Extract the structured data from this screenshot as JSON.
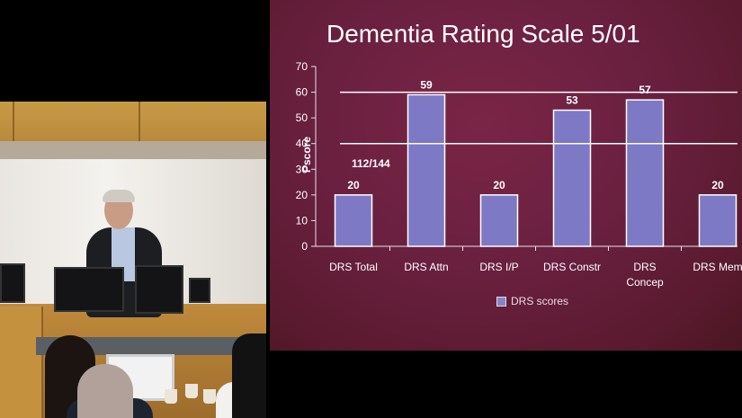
{
  "slide": {
    "title": "Dementia Rating Scale 5/01"
  },
  "chart_data": {
    "type": "bar",
    "title": "Dementia Rating Scale 5/01",
    "ylabel": "Pscore",
    "xlabel": "",
    "ylim": [
      0,
      70
    ],
    "yticks": [
      "0",
      "10",
      "20",
      "30",
      "40",
      "50",
      "60",
      "70"
    ],
    "categories": [
      [
        "DRS Total"
      ],
      [
        "DRS Attn"
      ],
      [
        "DRS I/P"
      ],
      [
        "DRS Constr"
      ],
      [
        "DRS",
        "Concep"
      ],
      [
        "DRS Mem"
      ]
    ],
    "series": [
      {
        "name": "DRS scores",
        "values": [
          20,
          59,
          20,
          53,
          57,
          20
        ]
      }
    ],
    "data_labels": [
      "20",
      "59",
      "20",
      "53",
      "57",
      "20"
    ],
    "reference_lines": [
      60,
      40
    ],
    "annotation": "112/144",
    "grid": false,
    "legend": "bottom-center",
    "colors": {
      "bar_fill": "#7d79c4",
      "bar_stroke": "#ffffff",
      "text": "#ffffff"
    }
  }
}
